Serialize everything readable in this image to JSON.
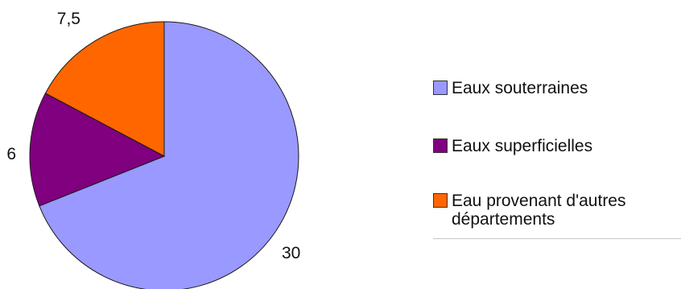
{
  "chart_data": {
    "type": "pie",
    "categories": [
      "Eaux souterraines",
      "Eaux superficielles",
      "Eau provenant d'autres départements"
    ],
    "values": [
      30,
      6,
      7.5
    ],
    "value_labels": [
      "30",
      "6",
      "7,5"
    ],
    "colors": [
      "#9999ff",
      "#800080",
      "#ff6600"
    ],
    "legend_labels": [
      "Eaux souterraines",
      "Eaux superficielles",
      "Eau provenant d'autres départements"
    ],
    "legend_position": "right",
    "start": "top",
    "direction": "clockwise"
  }
}
